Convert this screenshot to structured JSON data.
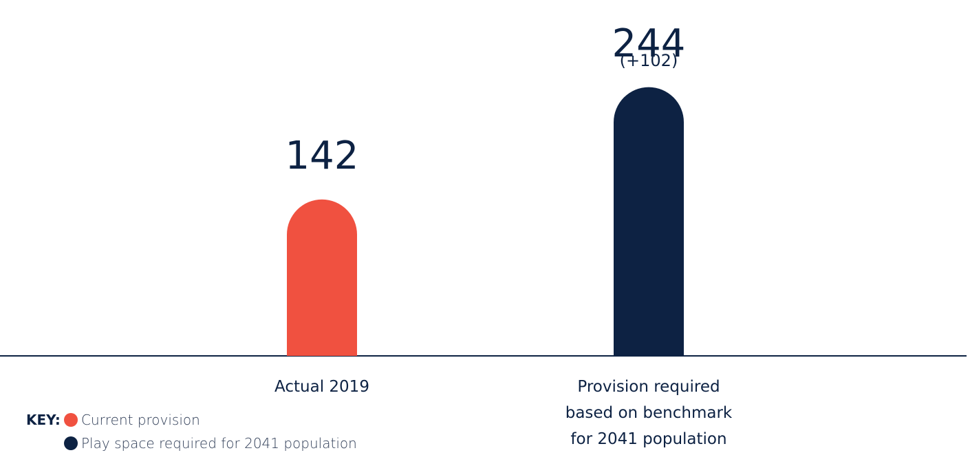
{
  "chart_data": {
    "type": "bar",
    "categories": [
      "Actual 2019",
      "Provision required\nbased on benchmark\nfor 2041 population"
    ],
    "values": [
      142,
      244
    ],
    "colors": [
      "#f05140",
      "#0d2243"
    ],
    "annotations": [
      {
        "text": "(+102)",
        "category": 1
      }
    ],
    "legend_title": "KEY:",
    "legend": [
      "Current provision",
      "Play space required for 2041 population"
    ]
  }
}
